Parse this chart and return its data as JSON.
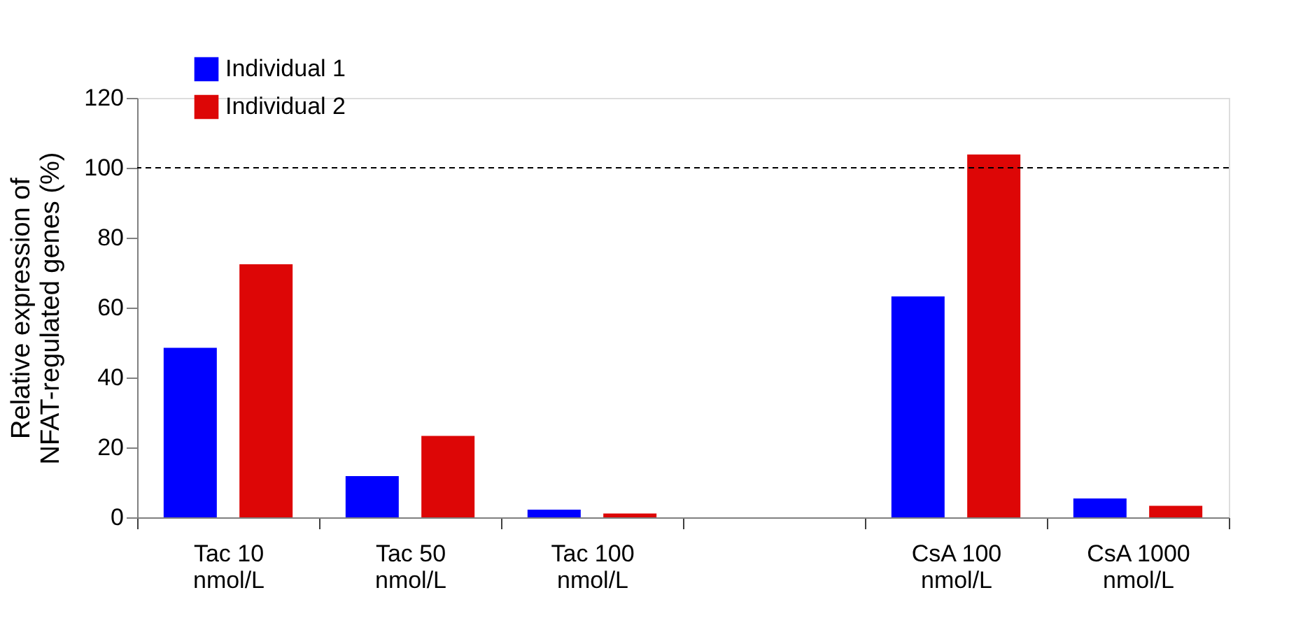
{
  "chart_data": {
    "type": "bar",
    "categories": [
      "Tac 10\nnmol/L",
      "Tac 50\nnmol/L",
      "Tac 100\nnmol/L",
      null,
      "CsA 100\nnmol/L",
      "CsA 1000\nnmol/L"
    ],
    "ylabel": "Relative expression of\nNFAT-regulated genes (%)",
    "series": [
      {
        "name": "Individual 1",
        "color": "#0000ff",
        "values": [
          48.5,
          11.8,
          2.2,
          null,
          63.2,
          5.4
        ]
      },
      {
        "name": "Individual 2",
        "color": "#dd0606",
        "values": [
          72.4,
          23.3,
          1.1,
          null,
          103.8,
          3.3
        ]
      }
    ],
    "ylim": [
      0,
      120
    ],
    "yticks": [
      0,
      20,
      40,
      60,
      80,
      100,
      120
    ],
    "ref_lines": [
      {
        "axis": "y",
        "value": 100,
        "label": null,
        "color": "#000000",
        "line_style": "dashed"
      }
    ],
    "legend": "top left",
    "grid": false
  }
}
